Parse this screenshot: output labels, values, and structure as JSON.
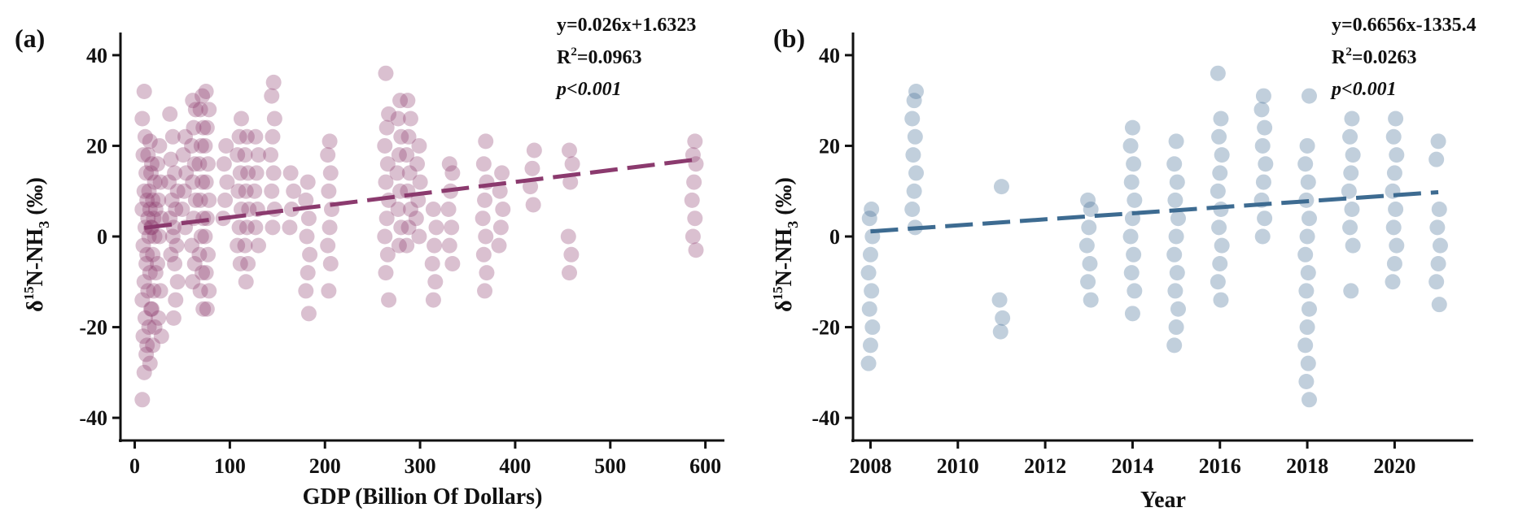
{
  "chart_data": [
    {
      "panel_label": "(a)",
      "type": "scatter",
      "xlabel": "GDP (Billion Of Dollars)",
      "ylabel_main": "δ",
      "ylabel_sup": "15",
      "ylabel_mid": "N-NH",
      "ylabel_sub": "3",
      "ylabel_end": " (‰)",
      "xlim": [
        -15,
        620
      ],
      "ylim": [
        -45,
        45
      ],
      "xticks": [
        0,
        100,
        200,
        300,
        400,
        500,
        600
      ],
      "yticks": [
        -40,
        -20,
        0,
        20,
        40
      ],
      "color": "#8b3a6e",
      "annotations": {
        "equation": "y=0.026x+1.6323",
        "r2_prefix": "R",
        "r2_sup": "2",
        "r2_value": "=0.0963",
        "pvalue": "p<0.001"
      },
      "fit": {
        "slope": 0.026,
        "intercept": 1.6323,
        "x_range": [
          10,
          590
        ]
      },
      "clusters": [
        {
          "x": 10,
          "y": [
            -36,
            -30,
            -26,
            -22,
            -18,
            -14,
            -10,
            -6,
            -2,
            2,
            6,
            10,
            14,
            18,
            22,
            26,
            32
          ]
        },
        {
          "x": 15,
          "y": [
            -28,
            -24,
            -20,
            -16,
            -12,
            -8,
            -4,
            0,
            2,
            4,
            6,
            8,
            10,
            14,
            18,
            21
          ]
        },
        {
          "x": 20,
          "y": [
            -24,
            -20,
            -16,
            -12,
            -8,
            -4,
            0,
            2,
            4,
            6,
            8,
            12,
            16
          ]
        },
        {
          "x": 26,
          "y": [
            -22,
            -18,
            -12,
            -6,
            0,
            4,
            8,
            12,
            16,
            20
          ]
        },
        {
          "x": 38,
          "y": [
            -4,
            0,
            4,
            8,
            12,
            17,
            22,
            27
          ]
        },
        {
          "x": 43,
          "y": [
            -18,
            -14,
            -10,
            -6,
            -2,
            2,
            6,
            10,
            14
          ]
        },
        {
          "x": 52,
          "y": [
            2,
            6,
            10,
            14,
            18,
            22
          ]
        },
        {
          "x": 62,
          "y": [
            -10,
            -6,
            -2,
            4,
            8,
            12,
            16,
            20,
            24,
            28,
            30
          ]
        },
        {
          "x": 70,
          "y": [
            -16,
            -12,
            -8,
            -4,
            0,
            4,
            8,
            12,
            16,
            20,
            24,
            28,
            31
          ]
        },
        {
          "x": 76,
          "y": [
            -16,
            -12,
            -8,
            -4,
            0,
            4,
            8,
            12,
            16,
            20,
            24,
            28,
            32
          ]
        },
        {
          "x": 95,
          "y": [
            4,
            8,
            12,
            16,
            20
          ]
        },
        {
          "x": 110,
          "y": [
            -6,
            -2,
            2,
            6,
            10,
            14,
            18,
            22,
            26
          ]
        },
        {
          "x": 118,
          "y": [
            -10,
            -6,
            -2,
            2,
            6,
            10,
            14,
            18,
            22
          ]
        },
        {
          "x": 128,
          "y": [
            -2,
            2,
            6,
            10,
            14,
            18,
            22
          ]
        },
        {
          "x": 145,
          "y": [
            2,
            6,
            10,
            14,
            18,
            22,
            26,
            31,
            34
          ]
        },
        {
          "x": 165,
          "y": [
            2,
            6,
            10,
            14
          ]
        },
        {
          "x": 182,
          "y": [
            -17,
            -12,
            -8,
            -4,
            0,
            4,
            8,
            12
          ]
        },
        {
          "x": 205,
          "y": [
            -12,
            -6,
            -2,
            2,
            6,
            10,
            14,
            18,
            21
          ]
        },
        {
          "x": 265,
          "y": [
            -14,
            -8,
            -4,
            0,
            4,
            8,
            12,
            16,
            20,
            24,
            27,
            36
          ]
        },
        {
          "x": 278,
          "y": [
            -2,
            2,
            6,
            10,
            14,
            18,
            22,
            26,
            30
          ]
        },
        {
          "x": 288,
          "y": [
            -2,
            2,
            6,
            10,
            14,
            18,
            22,
            26,
            30
          ]
        },
        {
          "x": 298,
          "y": [
            0,
            4,
            8,
            12,
            16,
            20
          ]
        },
        {
          "x": 315,
          "y": [
            -14,
            -10,
            -6,
            -2,
            2,
            6
          ]
        },
        {
          "x": 332,
          "y": [
            -6,
            -2,
            2,
            6,
            10,
            14,
            16
          ]
        },
        {
          "x": 368,
          "y": [
            -12,
            -8,
            -4,
            0,
            4,
            8,
            12,
            16,
            21
          ]
        },
        {
          "x": 385,
          "y": [
            -2,
            2,
            6,
            10,
            14
          ]
        },
        {
          "x": 418,
          "y": [
            7,
            11,
            15,
            19
          ]
        },
        {
          "x": 458,
          "y": [
            -8,
            -4,
            0,
            12,
            16,
            19
          ]
        },
        {
          "x": 588,
          "y": [
            -3,
            0,
            4,
            8,
            12,
            16,
            18,
            21
          ]
        }
      ]
    },
    {
      "panel_label": "(b)",
      "type": "scatter",
      "xlabel": "Year",
      "ylabel_main": "δ",
      "ylabel_sup": "15",
      "ylabel_mid": "N-NH",
      "ylabel_sub": "3",
      "ylabel_end": " (‰)",
      "xlim": [
        2007.6,
        2021.8
      ],
      "ylim": [
        -45,
        45
      ],
      "xticks": [
        2008,
        2010,
        2012,
        2014,
        2016,
        2018,
        2020
      ],
      "yticks": [
        -40,
        -20,
        0,
        20,
        40
      ],
      "color": "#3d6b91",
      "annotations": {
        "equation": "y=0.6656x-1335.4",
        "r2_prefix": "R",
        "r2_sup": "2",
        "r2_value": "=0.0263",
        "pvalue": "p<0.001"
      },
      "fit": {
        "slope": 0.6656,
        "intercept": -1335.4,
        "x_range": [
          2008,
          2021
        ]
      },
      "clusters": [
        {
          "x": 2008,
          "y": [
            -28,
            -24,
            -20,
            -16,
            -12,
            -8,
            -4,
            0,
            4,
            6
          ]
        },
        {
          "x": 2009,
          "y": [
            2,
            6,
            10,
            14,
            18,
            22,
            26,
            30,
            32
          ]
        },
        {
          "x": 2011,
          "y": [
            -21,
            -18,
            -14,
            11
          ]
        },
        {
          "x": 2013,
          "y": [
            -14,
            -10,
            -6,
            -2,
            2,
            6,
            8
          ]
        },
        {
          "x": 2014,
          "y": [
            -17,
            -12,
            -8,
            -4,
            0,
            4,
            8,
            12,
            16,
            20,
            24
          ]
        },
        {
          "x": 2015,
          "y": [
            -24,
            -20,
            -16,
            -12,
            -8,
            -4,
            0,
            4,
            8,
            12,
            16,
            21
          ]
        },
        {
          "x": 2016,
          "y": [
            -14,
            -10,
            -6,
            -2,
            2,
            6,
            10,
            14,
            18,
            22,
            26,
            36
          ]
        },
        {
          "x": 2017,
          "y": [
            0,
            4,
            8,
            12,
            16,
            20,
            24,
            28,
            31
          ]
        },
        {
          "x": 2018,
          "y": [
            -36,
            -32,
            -28,
            -24,
            -20,
            -16,
            -12,
            -8,
            -4,
            0,
            4,
            8,
            12,
            16,
            20,
            31
          ]
        },
        {
          "x": 2019,
          "y": [
            -12,
            -2,
            2,
            6,
            10,
            14,
            18,
            22,
            26
          ]
        },
        {
          "x": 2020,
          "y": [
            -10,
            -6,
            -2,
            2,
            6,
            10,
            14,
            18,
            22,
            26
          ]
        },
        {
          "x": 2021,
          "y": [
            -15,
            -10,
            -6,
            -2,
            2,
            6,
            17,
            21
          ]
        }
      ]
    }
  ]
}
